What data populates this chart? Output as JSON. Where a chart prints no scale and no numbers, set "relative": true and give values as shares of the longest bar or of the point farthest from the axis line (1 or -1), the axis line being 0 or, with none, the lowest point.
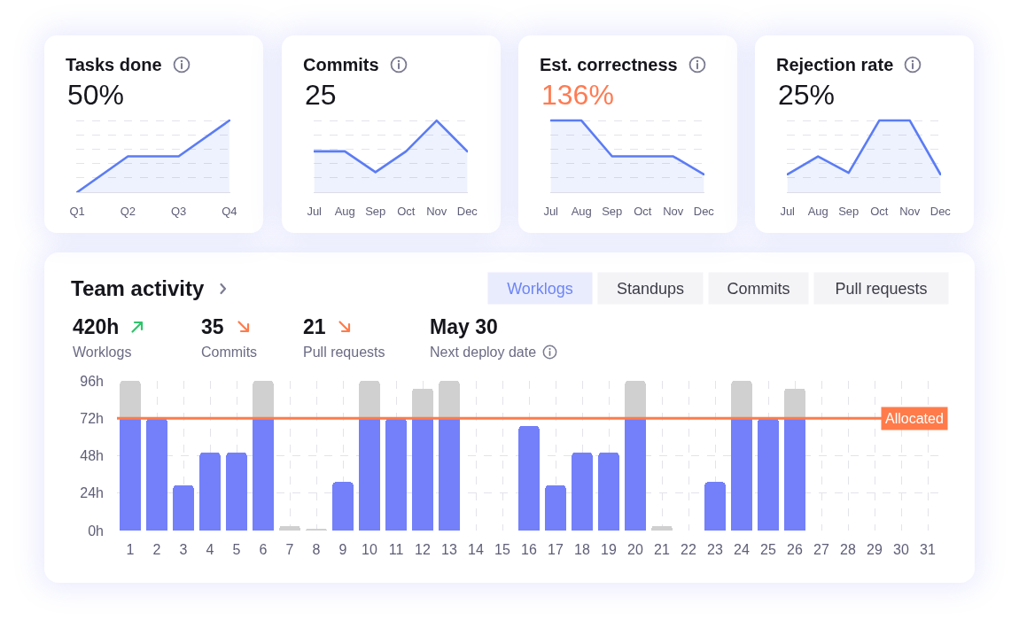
{
  "chart_data": [
    {
      "type": "area",
      "title": "Tasks done",
      "subtitle": "50%",
      "categories": [
        "Q1",
        "Q2",
        "Q3",
        "Q4"
      ],
      "relative": true,
      "grid": "y",
      "series": [
        {
          "color": "#5b7cf5",
          "values": [
            0,
            0.5,
            0.5,
            1
          ]
        }
      ]
    },
    {
      "type": "area",
      "title": "Commits",
      "subtitle": "25",
      "categories": [
        "Jul",
        "Aug",
        "Sep",
        "Oct",
        "Nov",
        "Dec"
      ],
      "relative": true,
      "grid": "y",
      "series": [
        {
          "color": "#5b7cf5",
          "values": [
            0.57,
            0.57,
            0.28,
            0.57,
            1,
            0.57
          ]
        }
      ]
    },
    {
      "type": "area",
      "title": "Est. correctness",
      "subtitle": "136%",
      "categories": [
        "Jul",
        "Aug",
        "Sep",
        "Oct",
        "Nov",
        "Dec"
      ],
      "relative": true,
      "grid": "y",
      "series": [
        {
          "color": "#5b7cf5",
          "values": [
            1,
            1,
            0.5,
            0.5,
            0.5,
            0.25
          ]
        }
      ]
    },
    {
      "type": "area",
      "title": "Rejection rate",
      "subtitle": "25%",
      "categories": [
        "Jul",
        "Aug",
        "Sep",
        "Oct",
        "Nov",
        "Dec"
      ],
      "relative": true,
      "grid": "y",
      "series": [
        {
          "color": "#5b7cf5",
          "values": [
            0.25,
            0.5,
            0.27,
            1,
            1,
            0.25
          ]
        }
      ]
    },
    {
      "type": "bar",
      "title": "Team activity",
      "annotations": [
        "420h",
        "Worklogs",
        "35",
        "Commits",
        "21",
        "Pull requests",
        "May 30",
        "Next deploy date",
        "Worklogs",
        "Standups",
        "Commits",
        "Pull requests"
      ],
      "categories": [
        "1",
        "2",
        "3",
        "4",
        "5",
        "6",
        "7",
        "8",
        "9",
        "10",
        "11",
        "12",
        "13",
        "14",
        "15",
        "16",
        "17",
        "18",
        "19",
        "20",
        "21",
        "22",
        "23",
        "24",
        "25",
        "26",
        "27",
        "28",
        "29",
        "30",
        "31"
      ],
      "stacked": true,
      "series": [
        {
          "color": "#7380f9",
          "values": [
            72,
            72,
            29,
            50,
            50,
            72,
            null,
            null,
            31,
            72,
            72,
            72,
            72,
            null,
            null,
            67,
            29,
            50,
            50,
            72,
            null,
            null,
            31,
            72,
            72,
            72,
            null,
            null,
            null,
            null,
            null
          ]
        },
        {
          "color": "#d0d0d0",
          "values": [
            24,
            null,
            null,
            null,
            null,
            24,
            3,
            1,
            null,
            24,
            null,
            19,
            24,
            null,
            null,
            null,
            null,
            null,
            null,
            24,
            3,
            null,
            null,
            24,
            null,
            19,
            null,
            null,
            null,
            null,
            null
          ]
        }
      ],
      "ylim": [
        0,
        96
      ],
      "yticks": [
        {
          "value": 0,
          "label": "0h"
        },
        {
          "value": 24,
          "label": "24h"
        },
        {
          "value": 48,
          "label": "48h"
        },
        {
          "value": 72,
          "label": "72h"
        },
        {
          "value": 96,
          "label": "96h"
        }
      ],
      "grid": true,
      "ref_lines": [
        {
          "axis": "y",
          "value": 72,
          "label": "Allocated",
          "color": "#ff7b4a"
        }
      ]
    }
  ]
}
